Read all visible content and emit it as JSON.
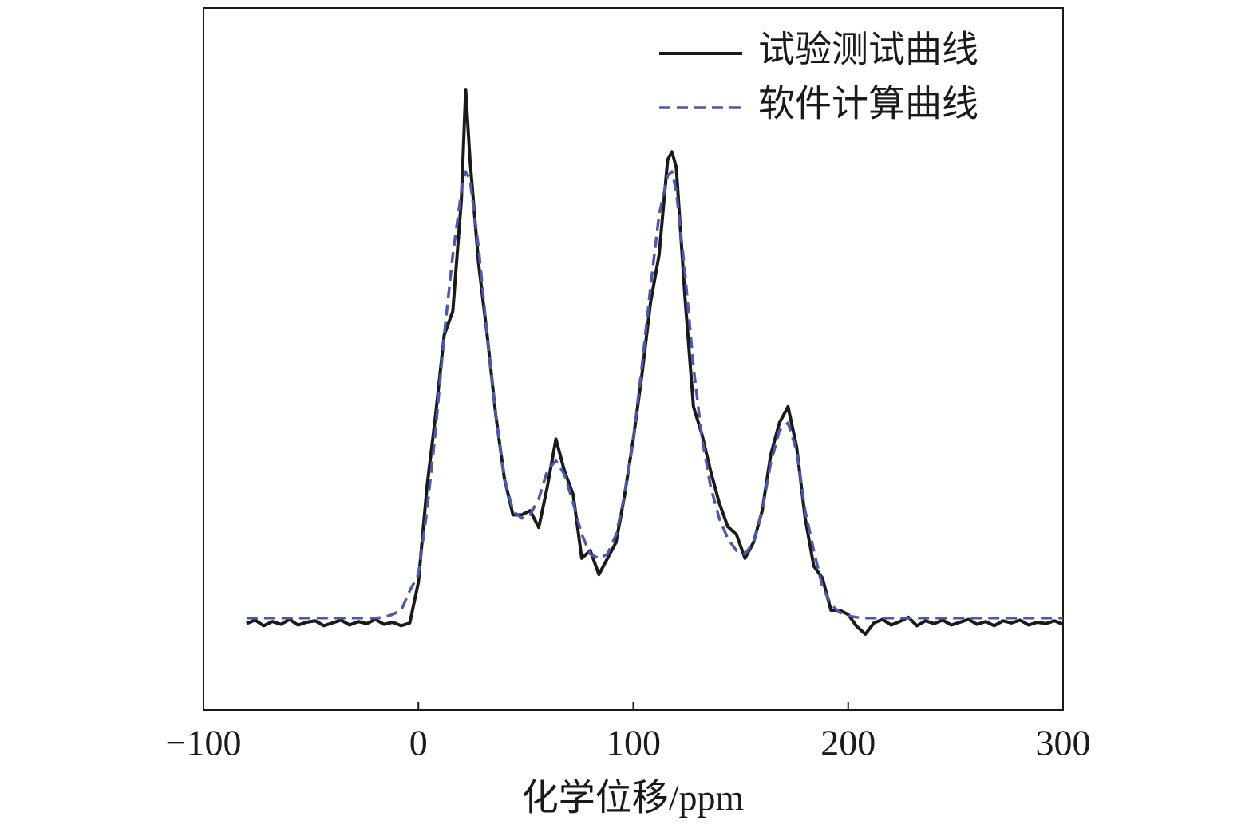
{
  "chart_data": {
    "type": "line",
    "xlabel": "化学位移/ppm",
    "xlim": [
      -100,
      300
    ],
    "xticks": [
      {
        "value": -100,
        "label": "−100"
      },
      0,
      100,
      200,
      300
    ],
    "ylim": [
      0,
      100
    ],
    "legend": "upper right",
    "x": [
      -80,
      -76,
      -72,
      -68,
      -64,
      -60,
      -56,
      -52,
      -48,
      -44,
      -40,
      -36,
      -32,
      -28,
      -24,
      -20,
      -16,
      -12,
      -8,
      -4,
      0,
      4,
      8,
      12,
      16,
      20,
      22,
      24,
      28,
      32,
      36,
      40,
      44,
      48,
      52,
      56,
      60,
      64,
      68,
      72,
      76,
      80,
      84,
      88,
      92,
      96,
      100,
      104,
      108,
      112,
      116,
      118,
      120,
      124,
      128,
      132,
      136,
      140,
      144,
      148,
      152,
      156,
      160,
      164,
      168,
      172,
      176,
      180,
      184,
      188,
      192,
      196,
      200,
      204,
      208,
      212,
      216,
      220,
      224,
      228,
      232,
      236,
      240,
      244,
      248,
      252,
      256,
      260,
      264,
      268,
      272,
      276,
      280,
      284,
      288,
      292,
      296,
      300
    ],
    "series": [
      {
        "name": "试验测试曲线",
        "color": "#1a1a1a",
        "dash": false,
        "values": [
          12.3,
          12.8,
          12.0,
          12.6,
          12.2,
          12.9,
          12.1,
          12.5,
          12.7,
          12.0,
          12.4,
          12.8,
          12.1,
          12.6,
          12.3,
          12.9,
          12.2,
          12.5,
          12.0,
          12.4,
          18.2,
          31.8,
          42,
          53.4,
          56.8,
          72.7,
          88.4,
          78.4,
          63.6,
          53.4,
          42,
          33,
          27.8,
          27.8,
          28.4,
          26,
          31.8,
          38.6,
          34,
          30.7,
          21.6,
          22.7,
          19.3,
          21.6,
          23.9,
          30.7,
          38.6,
          47.7,
          58,
          64.8,
          78.4,
          79.5,
          77.3,
          59,
          43.2,
          39.2,
          34,
          29.5,
          26.1,
          25,
          21.6,
          23.9,
          28.4,
          36.4,
          40.9,
          43.2,
          37.5,
          27.3,
          20.5,
          18.8,
          14.2,
          14.2,
          13.6,
          11.9,
          10.8,
          12.4,
          12.9,
          12.1,
          12.6,
          13.2,
          12.0,
          12.7,
          12.3,
          12.8,
          12.1,
          12.5,
          12.9,
          12.2,
          12.6,
          12.0,
          12.7,
          12.4,
          12.8,
          12.1,
          12.5,
          12.3,
          12.7,
          12.2
        ]
      },
      {
        "name": "软件计算曲线",
        "color": "#4a5aa8",
        "dash": true,
        "values": [
          13.1,
          13.1,
          13.1,
          13.1,
          13.1,
          13.1,
          13.1,
          13.1,
          13.1,
          13.1,
          13.1,
          13.1,
          13.1,
          13.1,
          13.1,
          13.1,
          13.2,
          13.6,
          14.2,
          17,
          19.3,
          28.4,
          39.8,
          53.4,
          64.8,
          73.9,
          76.7,
          75.6,
          65.9,
          53.4,
          42,
          33,
          28.4,
          27.3,
          27.8,
          30.1,
          34.1,
          35.5,
          33.5,
          29.5,
          25,
          22.2,
          21.6,
          22.2,
          25,
          30.7,
          38.6,
          48.9,
          60.2,
          70.5,
          76.1,
          76.7,
          73.9,
          62.5,
          48.9,
          38.6,
          31.8,
          27.3,
          24.4,
          22.7,
          22.2,
          23.9,
          28.4,
          35.2,
          39.8,
          40.9,
          36.9,
          28.4,
          22.7,
          17.6,
          15,
          13.9,
          13.4,
          13.2,
          13.1,
          13.1,
          13.1,
          13.1,
          13.1,
          13.1,
          13.1,
          13.1,
          13.1,
          13.1,
          13.1,
          13.1,
          13.1,
          13.1,
          13.1,
          13.1,
          13.1,
          13.1,
          13.1,
          13.1,
          13.1,
          13.1,
          13.1,
          13.1
        ]
      }
    ]
  }
}
